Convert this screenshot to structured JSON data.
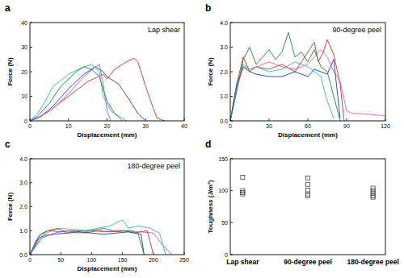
{
  "chart_data": [
    {
      "type": "line",
      "panel_label": "a",
      "title": "Lap shear",
      "xlabel": "Displacement (mm)",
      "ylabel": "Force (N)",
      "xlim": [
        0,
        40
      ],
      "xticks": [
        0,
        10,
        20,
        30,
        40
      ],
      "ylim": [
        0,
        40
      ],
      "yticks": [
        0,
        10,
        20,
        30,
        40
      ],
      "series": [
        {
          "color": "#e0403a",
          "x": [
            0,
            2,
            5,
            10,
            15,
            19,
            20,
            22,
            25,
            27,
            28,
            30,
            32,
            33,
            35
          ],
          "values": [
            0,
            1,
            4,
            10,
            16,
            19,
            17,
            21,
            24,
            25.5,
            24,
            14,
            5,
            1,
            0
          ]
        },
        {
          "color": "#3050c8",
          "x": [
            0,
            3,
            6,
            10,
            14,
            17,
            19,
            20,
            23,
            26,
            28,
            30
          ],
          "values": [
            0,
            2,
            6,
            13,
            19,
            22,
            20,
            18,
            15,
            8,
            3,
            0
          ]
        },
        {
          "color": "#40c0c0",
          "x": [
            0,
            2,
            4,
            6,
            10,
            14,
            16,
            18,
            19,
            21,
            23,
            25
          ],
          "values": [
            0,
            3,
            8,
            14,
            19,
            22,
            23,
            20,
            10,
            4,
            2,
            0
          ]
        },
        {
          "color": "#c060e0",
          "x": [
            0,
            3,
            6,
            10,
            14,
            17,
            18,
            19,
            20,
            21
          ],
          "values": [
            0,
            2,
            5,
            11,
            18,
            22,
            23,
            15,
            4,
            0
          ]
        },
        {
          "color": "#2a9a4a",
          "x": [
            0,
            2,
            5,
            8,
            12,
            14,
            16,
            18,
            20,
            22,
            24
          ],
          "values": [
            0,
            2,
            7,
            14,
            20,
            22,
            21,
            18,
            8,
            3,
            0
          ]
        }
      ]
    },
    {
      "type": "line",
      "panel_label": "b",
      "title": "90-degree peel",
      "xlabel": "Displacement (mm)",
      "ylabel": "Force (N)",
      "xlim": [
        0,
        120
      ],
      "xticks": [
        0,
        30,
        60,
        90,
        120
      ],
      "ylim": [
        0,
        4
      ],
      "yticks": [
        {
          "value": 0,
          "label": "0.0"
        },
        {
          "value": 1,
          "label": "1.0"
        },
        {
          "value": 2,
          "label": "2.0"
        },
        {
          "value": 3,
          "label": "3.0"
        },
        {
          "value": 4,
          "label": "4.0"
        }
      ],
      "series": [
        {
          "color": "#e070c0",
          "x": [
            0,
            5,
            10,
            15,
            20,
            30,
            40,
            50,
            60,
            70,
            75,
            80,
            85,
            90,
            95,
            100,
            120
          ],
          "values": [
            0,
            1.3,
            2.2,
            2.1,
            2.2,
            2.4,
            2.2,
            2.1,
            2.3,
            2.9,
            2.6,
            2.0,
            1.6,
            0.4,
            0.3,
            0.3,
            0.2
          ]
        },
        {
          "color": "#e0403a",
          "x": [
            0,
            5,
            10,
            15,
            20,
            30,
            40,
            50,
            60,
            65,
            68,
            72,
            75,
            80,
            85,
            88
          ],
          "values": [
            0,
            1.5,
            2.6,
            2.0,
            2.2,
            2.1,
            2.3,
            2.0,
            2.8,
            3.2,
            2.4,
            2.8,
            3.3,
            2.7,
            1.5,
            0
          ]
        },
        {
          "color": "#40c0c0",
          "x": [
            0,
            5,
            10,
            15,
            20,
            30,
            40,
            50,
            60,
            70,
            75,
            80
          ],
          "values": [
            0,
            1.4,
            2.3,
            2.1,
            2.2,
            2.0,
            2.1,
            2.4,
            2.2,
            1.8,
            0.8,
            0.1
          ]
        },
        {
          "color": "#3050c8",
          "x": [
            0,
            5,
            10,
            15,
            20,
            30,
            40,
            50,
            60,
            65,
            70,
            75,
            80,
            85
          ],
          "values": [
            0,
            1.5,
            2.2,
            2.0,
            1.9,
            1.8,
            1.8,
            2.0,
            1.8,
            2.1,
            2.0,
            1.9,
            2.5,
            0.1
          ]
        },
        {
          "color": "#2a9a4a",
          "x": [
            0,
            5,
            10,
            15,
            20,
            25,
            30,
            35,
            40,
            45,
            50,
            55,
            60,
            65,
            70,
            75,
            80,
            85
          ],
          "values": [
            0,
            1.2,
            2.5,
            3.0,
            2.3,
            2.6,
            2.9,
            2.5,
            2.8,
            3.6,
            2.6,
            2.8,
            2.4,
            2.9,
            2.2,
            2.0,
            1.0,
            0
          ]
        }
      ]
    },
    {
      "type": "line",
      "panel_label": "c",
      "title": "180-degree peel",
      "xlabel": "Displacement (mm)",
      "ylabel": "Force (N)",
      "xlim": [
        0,
        250
      ],
      "xticks": [
        0,
        50,
        100,
        150,
        200,
        250
      ],
      "ylim": [
        0,
        4
      ],
      "yticks": [
        {
          "value": 0,
          "label": "0.0"
        },
        {
          "value": 1,
          "label": "1.0"
        },
        {
          "value": 2,
          "label": "2.0"
        },
        {
          "value": 3,
          "label": "3.0"
        },
        {
          "value": 4,
          "label": "4.0"
        }
      ],
      "series": [
        {
          "color": "#40c0c0",
          "x": [
            0,
            20,
            35,
            50,
            70,
            90,
            110,
            130,
            150,
            160,
            175,
            195,
            210,
            220
          ],
          "values": [
            0,
            0.8,
            1.0,
            1.1,
            1.05,
            1.0,
            1.1,
            1.2,
            1.45,
            1.1,
            1.2,
            1.1,
            0.9,
            0
          ]
        },
        {
          "color": "#c060e0",
          "x": [
            0,
            20,
            40,
            60,
            80,
            100,
            120,
            140,
            160,
            180,
            200,
            215,
            230
          ],
          "values": [
            0,
            0.7,
            0.9,
            1.0,
            0.9,
            1.0,
            0.95,
            1.0,
            1.0,
            0.95,
            0.9,
            0.4,
            0
          ]
        },
        {
          "color": "#e0403a",
          "x": [
            0,
            10,
            20,
            30,
            50,
            70,
            90,
            110,
            130,
            150,
            170,
            190,
            200
          ],
          "values": [
            0,
            0.6,
            0.9,
            1.0,
            0.95,
            1.0,
            0.9,
            1.0,
            0.95,
            1.0,
            0.9,
            1.0,
            0
          ]
        },
        {
          "color": "#3050c8",
          "x": [
            0,
            15,
            25,
            40,
            60,
            80,
            100,
            120,
            140,
            160,
            180,
            185
          ],
          "values": [
            0,
            0.7,
            0.8,
            0.85,
            0.9,
            0.95,
            0.9,
            0.85,
            0.9,
            0.95,
            0.85,
            0
          ]
        },
        {
          "color": "#2a9a4a",
          "x": [
            0,
            15,
            30,
            45,
            60,
            80,
            100,
            120,
            140,
            160,
            175,
            185
          ],
          "values": [
            0,
            0.8,
            1.0,
            1.1,
            0.9,
            1.0,
            1.0,
            1.1,
            0.95,
            1.0,
            0.9,
            0
          ]
        }
      ]
    },
    {
      "type": "scatter",
      "panel_label": "d",
      "ylabel": "Toughness (J/m²)",
      "categories": [
        "Lap shear",
        "90-degree peel",
        "180-degree peel"
      ],
      "values": [
        [
          121,
          100,
          97,
          95
        ],
        [
          120,
          110,
          101,
          95,
          92
        ],
        [
          104,
          100,
          96,
          92,
          90
        ]
      ],
      "ylim": [
        0,
        150
      ],
      "yticks": [
        0,
        50,
        100,
        150
      ],
      "marker": "square",
      "color": "#444444"
    }
  ]
}
